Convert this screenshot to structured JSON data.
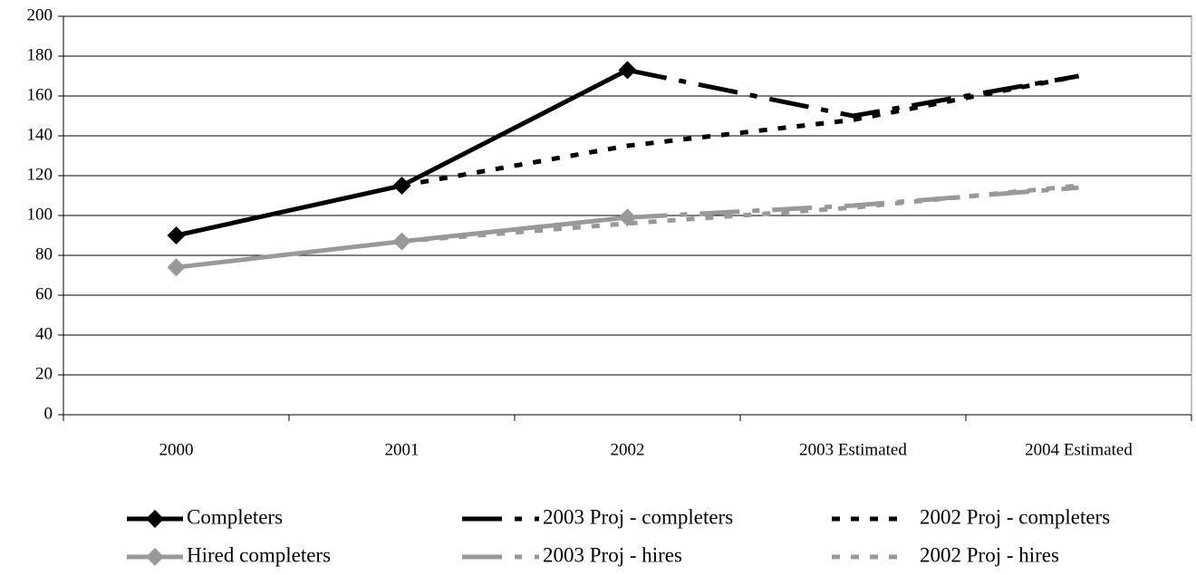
{
  "chart_data": {
    "type": "line",
    "categories": [
      "2000",
      "2001",
      "2002",
      "2003 Estimated",
      "2004 Estimated"
    ],
    "series": [
      {
        "name": "Completers",
        "color": "#000000",
        "dash": "solid",
        "marker": "diamond",
        "values": [
          90,
          115,
          173,
          null,
          null
        ]
      },
      {
        "name": "2003 Proj - completers",
        "color": "#000000",
        "dash": "dash-dot",
        "marker": "none",
        "values": [
          null,
          null,
          173,
          150,
          170
        ]
      },
      {
        "name": "2002 Proj - completers",
        "color": "#000000",
        "dash": "dot",
        "marker": "none",
        "values": [
          null,
          115,
          135,
          148,
          170
        ]
      },
      {
        "name": "Hired completers",
        "color": "#999999",
        "dash": "solid",
        "marker": "diamond",
        "values": [
          74,
          87,
          99,
          null,
          null
        ]
      },
      {
        "name": "2003 Proj - hires",
        "color": "#999999",
        "dash": "dash-dot",
        "marker": "none",
        "values": [
          null,
          null,
          99,
          105,
          114
        ]
      },
      {
        "name": "2002 Proj - hires",
        "color": "#999999",
        "dash": "dot",
        "marker": "none",
        "values": [
          null,
          87,
          96,
          104,
          115
        ]
      }
    ],
    "ylim": [
      0,
      200
    ],
    "yticks": [
      0,
      20,
      40,
      60,
      80,
      100,
      120,
      140,
      160,
      180,
      200
    ],
    "grid": true,
    "legend": "bottom"
  }
}
